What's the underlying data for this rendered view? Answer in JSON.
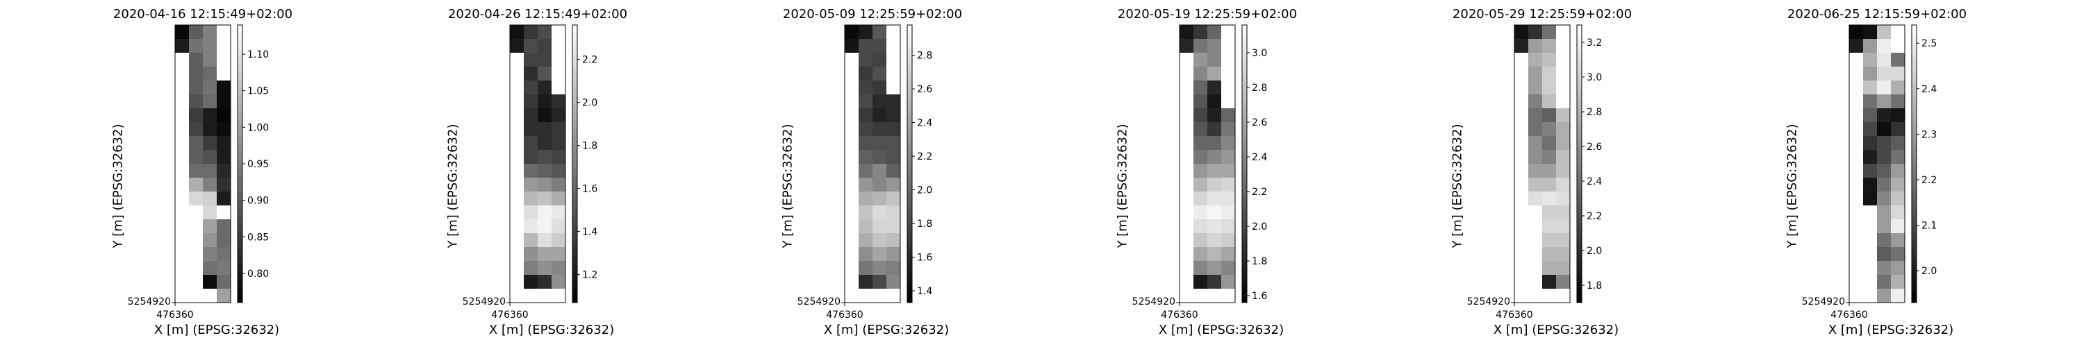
{
  "chart_data": [
    {
      "type": "heatmap",
      "title": "2020-04-16 12:15:49+02:00",
      "xlabel": "X [m] (EPSG:32632)",
      "ylabel": "Y [m] (EPSG:32632)",
      "x_tick_label": "476360",
      "y_tick_label": "5254920",
      "colormap": "greys_r",
      "colorbar": {
        "range": [
          0.76,
          1.14
        ],
        "ticks": [
          "0.80",
          "0.85",
          "0.90",
          "0.95",
          "1.00",
          "1.05",
          "1.10"
        ]
      },
      "grid": [
        [
          0.77,
          0.9,
          0.95,
          null
        ],
        [
          0.8,
          0.93,
          0.95,
          null
        ],
        [
          null,
          0.9,
          0.95,
          null
        ],
        [
          null,
          0.9,
          0.92,
          null
        ],
        [
          null,
          0.9,
          0.93,
          0.78
        ],
        [
          null,
          0.88,
          0.92,
          0.78
        ],
        [
          null,
          0.85,
          0.8,
          0.77
        ],
        [
          null,
          0.86,
          0.8,
          0.78
        ],
        [
          null,
          0.9,
          0.85,
          0.8
        ],
        [
          null,
          0.9,
          0.88,
          0.8
        ],
        [
          null,
          0.92,
          0.92,
          0.82
        ],
        [
          null,
          1.02,
          0.95,
          0.83
        ],
        [
          null,
          1.08,
          1.07,
          0.8
        ],
        [
          null,
          null,
          1.08,
          null
        ],
        [
          null,
          null,
          1.0,
          0.92
        ],
        [
          null,
          null,
          0.98,
          0.92
        ],
        [
          null,
          null,
          0.95,
          0.93
        ],
        [
          null,
          null,
          0.93,
          0.94
        ],
        [
          null,
          null,
          0.78,
          0.92
        ],
        [
          null,
          null,
          null,
          1.0
        ]
      ]
    },
    {
      "type": "heatmap",
      "title": "2020-04-26 12:15:49+02:00",
      "xlabel": "X [m] (EPSG:32632)",
      "ylabel": "Y [m] (EPSG:32632)",
      "x_tick_label": "476360",
      "y_tick_label": "5254920",
      "colormap": "greys_r",
      "colorbar": {
        "range": [
          1.07,
          2.36
        ],
        "ticks": [
          "1.2",
          "1.4",
          "1.6",
          "1.8",
          "2.0",
          "2.2"
        ]
      },
      "grid": [
        [
          1.15,
          1.35,
          1.45,
          null
        ],
        [
          1.2,
          1.45,
          1.4,
          null
        ],
        [
          null,
          1.4,
          1.4,
          null
        ],
        [
          null,
          1.3,
          1.5,
          null
        ],
        [
          null,
          1.4,
          1.25,
          null
        ],
        [
          null,
          1.35,
          1.2,
          1.3
        ],
        [
          null,
          1.3,
          1.15,
          1.25
        ],
        [
          null,
          1.3,
          1.3,
          1.35
        ],
        [
          null,
          1.4,
          1.3,
          1.35
        ],
        [
          null,
          1.4,
          1.45,
          1.4
        ],
        [
          null,
          1.6,
          1.55,
          1.5
        ],
        [
          null,
          1.85,
          1.8,
          1.7
        ],
        [
          null,
          2.0,
          2.05,
          1.95
        ],
        [
          null,
          2.2,
          2.3,
          2.25
        ],
        [
          null,
          2.25,
          2.3,
          2.2
        ],
        [
          null,
          2.0,
          2.2,
          2.1
        ],
        [
          null,
          1.8,
          1.9,
          1.9
        ],
        [
          null,
          1.7,
          1.8,
          1.75
        ],
        [
          null,
          1.2,
          1.3,
          1.8
        ],
        [
          null,
          null,
          null,
          null
        ]
      ]
    },
    {
      "type": "heatmap",
      "title": "2020-05-09 12:25:59+02:00",
      "xlabel": "X [m] (EPSG:32632)",
      "ylabel": "Y [m] (EPSG:32632)",
      "x_tick_label": "476360",
      "y_tick_label": "5254920",
      "colormap": "greys_r",
      "colorbar": {
        "range": [
          1.33,
          2.98
        ],
        "ticks": [
          "1.4",
          "1.6",
          "1.8",
          "2.0",
          "2.2",
          "2.4",
          "2.6",
          "2.8"
        ]
      },
      "grid": [
        [
          1.4,
          1.5,
          1.9,
          null
        ],
        [
          1.45,
          1.8,
          1.8,
          null
        ],
        [
          null,
          1.8,
          1.75,
          null
        ],
        [
          null,
          1.7,
          1.85,
          null
        ],
        [
          null,
          1.75,
          1.7,
          null
        ],
        [
          null,
          1.8,
          1.6,
          1.6
        ],
        [
          null,
          1.7,
          1.55,
          1.6
        ],
        [
          null,
          1.75,
          1.7,
          1.7
        ],
        [
          null,
          1.85,
          1.85,
          1.85
        ],
        [
          null,
          1.95,
          1.9,
          1.85
        ],
        [
          null,
          2.05,
          2.2,
          1.95
        ],
        [
          null,
          2.3,
          2.2,
          2.3
        ],
        [
          null,
          2.45,
          2.5,
          2.6
        ],
        [
          null,
          2.6,
          2.75,
          2.7
        ],
        [
          null,
          2.55,
          2.7,
          2.7
        ],
        [
          null,
          2.45,
          2.6,
          2.55
        ],
        [
          null,
          2.25,
          2.4,
          2.3
        ],
        [
          null,
          2.1,
          2.2,
          2.15
        ],
        [
          null,
          1.6,
          1.8,
          2.2
        ],
        [
          null,
          null,
          null,
          null
        ]
      ]
    },
    {
      "type": "heatmap",
      "title": "2020-05-19 12:25:59+02:00",
      "xlabel": "X [m] (EPSG:32632)",
      "ylabel": "Y [m] (EPSG:32632)",
      "x_tick_label": "476360",
      "y_tick_label": "5254920",
      "colormap": "greys_r",
      "colorbar": {
        "range": [
          1.56,
          3.16
        ],
        "ticks": [
          "1.6",
          "1.8",
          "2.0",
          "2.2",
          "2.4",
          "2.6",
          "2.8",
          "3.0"
        ]
      },
      "grid": [
        [
          1.7,
          1.9,
          2.2,
          null
        ],
        [
          1.8,
          2.3,
          2.4,
          null
        ],
        [
          null,
          2.5,
          2.4,
          null
        ],
        [
          null,
          2.4,
          2.6,
          null
        ],
        [
          null,
          2.2,
          1.8,
          null
        ],
        [
          null,
          2.1,
          1.7,
          null
        ],
        [
          null,
          2.0,
          1.75,
          2.2
        ],
        [
          null,
          2.1,
          1.9,
          2.3
        ],
        [
          null,
          2.2,
          2.2,
          2.4
        ],
        [
          null,
          2.3,
          2.4,
          2.5
        ],
        [
          null,
          2.5,
          2.6,
          2.6
        ],
        [
          null,
          2.7,
          2.85,
          2.9
        ],
        [
          null,
          2.9,
          3.0,
          3.0
        ],
        [
          null,
          3.05,
          3.1,
          3.05
        ],
        [
          null,
          2.95,
          3.0,
          2.95
        ],
        [
          null,
          2.8,
          2.9,
          2.85
        ],
        [
          null,
          2.6,
          2.7,
          2.6
        ],
        [
          null,
          2.4,
          2.5,
          2.4
        ],
        [
          null,
          1.7,
          1.9,
          2.5
        ],
        [
          null,
          null,
          null,
          null
        ]
      ]
    },
    {
      "type": "heatmap",
      "title": "2020-05-29 12:25:59+02:00",
      "xlabel": "X [m] (EPSG:32632)",
      "ylabel": "Y [m] (EPSG:32632)",
      "x_tick_label": "476360",
      "y_tick_label": "5254920",
      "colormap": "greys_r",
      "colorbar": {
        "range": [
          1.7,
          3.3
        ],
        "ticks": [
          "1.8",
          "2.0",
          "2.2",
          "2.4",
          "2.6",
          "2.8",
          "3.0",
          "3.2"
        ]
      },
      "grid": [
        [
          1.8,
          2.0,
          2.4,
          null
        ],
        [
          1.9,
          2.7,
          2.8,
          null
        ],
        [
          null,
          2.8,
          2.9,
          null
        ],
        [
          null,
          2.7,
          3.0,
          null
        ],
        [
          null,
          2.7,
          3.0,
          null
        ],
        [
          null,
          2.5,
          2.9,
          null
        ],
        [
          null,
          2.4,
          2.3,
          2.9
        ],
        [
          null,
          2.4,
          2.5,
          2.8
        ],
        [
          null,
          2.6,
          2.4,
          2.8
        ],
        [
          null,
          2.6,
          2.5,
          2.9
        ],
        [
          null,
          2.7,
          2.7,
          2.9
        ],
        [
          null,
          2.9,
          2.9,
          3.05
        ],
        [
          null,
          3.1,
          3.15,
          3.1
        ],
        [
          null,
          null,
          3.0,
          3.0
        ],
        [
          null,
          null,
          3.05,
          3.05
        ],
        [
          null,
          null,
          2.95,
          2.95
        ],
        [
          null,
          null,
          2.85,
          2.85
        ],
        [
          null,
          null,
          2.8,
          2.8
        ],
        [
          null,
          null,
          1.9,
          2.5
        ],
        [
          null,
          null,
          null,
          null
        ]
      ]
    },
    {
      "type": "heatmap",
      "title": "2020-06-25 12:15:59+02:00",
      "xlabel": "X [m] (EPSG:32632)",
      "ylabel": "Y [m] (EPSG:32632)",
      "x_tick_label": "476360",
      "y_tick_label": "5254920",
      "colormap": "greys_r",
      "colorbar": {
        "range": [
          1.93,
          2.54
        ],
        "ticks": [
          "2.0",
          "2.1",
          "2.2",
          "2.3",
          "2.4",
          "2.5"
        ]
      },
      "grid": [
        [
          1.95,
          1.97,
          2.4,
          null
        ],
        [
          2.0,
          2.3,
          2.5,
          null
        ],
        [
          null,
          2.35,
          2.48,
          2.2
        ],
        [
          null,
          2.3,
          2.45,
          2.45
        ],
        [
          null,
          2.4,
          2.5,
          2.35
        ],
        [
          null,
          2.2,
          2.3,
          2.2
        ],
        [
          null,
          2.15,
          2.0,
          1.98
        ],
        [
          null,
          2.1,
          1.96,
          2.05
        ],
        [
          null,
          2.05,
          2.1,
          2.15
        ],
        [
          null,
          2.0,
          2.1,
          2.2
        ],
        [
          null,
          2.1,
          2.15,
          2.3
        ],
        [
          null,
          1.98,
          2.2,
          2.35
        ],
        [
          null,
          1.97,
          2.25,
          2.4
        ],
        [
          null,
          null,
          2.3,
          2.45
        ],
        [
          null,
          null,
          2.3,
          2.5
        ],
        [
          null,
          null,
          2.2,
          2.3
        ],
        [
          null,
          null,
          2.15,
          2.2
        ],
        [
          null,
          null,
          2.25,
          2.3
        ],
        [
          null,
          null,
          2.2,
          2.35
        ],
        [
          null,
          null,
          2.3,
          2.5
        ]
      ]
    }
  ]
}
